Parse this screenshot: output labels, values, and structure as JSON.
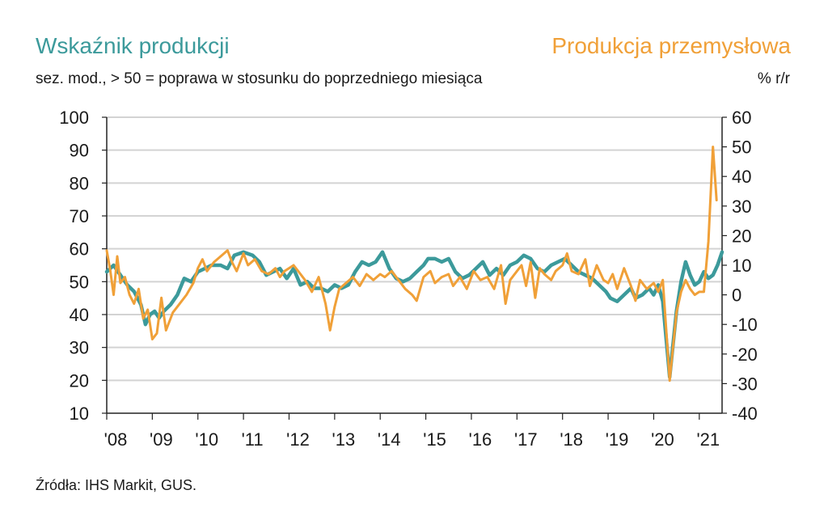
{
  "colors": {
    "left_series": "#3c9a9b",
    "right_series": "#f0a038",
    "grid": "#d3d3d3",
    "axis": "#222222"
  },
  "texts": {
    "title_left": "Wskaźnik produkcji",
    "title_right": "Produkcja przemysłowa",
    "subtitle_left": "sez. mod., > 50 = poprawa w stosunku do poprzedniego miesiąca",
    "subtitle_right": "% r/r",
    "source": "Źródła: IHS Markit, GUS."
  },
  "chart_data": {
    "type": "line",
    "title": "Wskaźnik produkcji / Produkcja przemysłowa",
    "left_axis": {
      "label": "sez. mod., > 50 = poprawa w stosunku do poprzedniego miesiąca",
      "ylim": [
        10,
        100
      ],
      "ticks": [
        "10",
        "20",
        "30",
        "40",
        "50",
        "60",
        "70",
        "80",
        "90",
        "100"
      ]
    },
    "right_axis": {
      "label": "% r/r",
      "ylim": [
        -40,
        60
      ],
      "ticks": [
        "-40",
        "-30",
        "-20",
        "-10",
        "0",
        "10",
        "20",
        "30",
        "40",
        "50",
        "60"
      ]
    },
    "x_range": [
      2008.0,
      2021.5
    ],
    "x_ticks": [
      {
        "label": "'08",
        "x": 2008.0
      },
      {
        "label": "'09",
        "x": 2009.0
      },
      {
        "label": "'10",
        "x": 2010.0
      },
      {
        "label": "'11",
        "x": 2011.0
      },
      {
        "label": "'12",
        "x": 2012.0
      },
      {
        "label": "'13",
        "x": 2013.0
      },
      {
        "label": "'14",
        "x": 2014.0
      },
      {
        "label": "'15",
        "x": 2015.0
      },
      {
        "label": "'16",
        "x": 2016.0
      },
      {
        "label": "'17",
        "x": 2017.0
      },
      {
        "label": "'18",
        "x": 2018.0
      },
      {
        "label": "'19",
        "x": 2019.0
      },
      {
        "label": "'20",
        "x": 2020.0
      },
      {
        "label": "'21",
        "x": 2021.0
      }
    ],
    "grid": true,
    "series": [
      {
        "name": "Wskaźnik produkcji",
        "axis": "left",
        "points": [
          [
            2008.0,
            53
          ],
          [
            2008.15,
            55
          ],
          [
            2008.3,
            52
          ],
          [
            2008.45,
            49
          ],
          [
            2008.6,
            47
          ],
          [
            2008.75,
            43
          ],
          [
            2008.85,
            37
          ],
          [
            2008.95,
            40
          ],
          [
            2009.05,
            41
          ],
          [
            2009.15,
            39
          ],
          [
            2009.25,
            41
          ],
          [
            2009.4,
            43
          ],
          [
            2009.55,
            46
          ],
          [
            2009.7,
            51
          ],
          [
            2009.85,
            50
          ],
          [
            2010.0,
            53
          ],
          [
            2010.15,
            54
          ],
          [
            2010.3,
            55
          ],
          [
            2010.5,
            55
          ],
          [
            2010.65,
            54
          ],
          [
            2010.8,
            58
          ],
          [
            2011.0,
            59
          ],
          [
            2011.2,
            58
          ],
          [
            2011.35,
            56
          ],
          [
            2011.5,
            52
          ],
          [
            2011.65,
            53
          ],
          [
            2011.8,
            54
          ],
          [
            2011.95,
            51
          ],
          [
            2012.1,
            54
          ],
          [
            2012.25,
            49
          ],
          [
            2012.4,
            50
          ],
          [
            2012.55,
            48
          ],
          [
            2012.7,
            48
          ],
          [
            2012.85,
            47
          ],
          [
            2013.0,
            49
          ],
          [
            2013.15,
            48
          ],
          [
            2013.3,
            49
          ],
          [
            2013.45,
            53
          ],
          [
            2013.6,
            56
          ],
          [
            2013.75,
            55
          ],
          [
            2013.9,
            56
          ],
          [
            2014.05,
            59
          ],
          [
            2014.2,
            54
          ],
          [
            2014.35,
            51
          ],
          [
            2014.5,
            50
          ],
          [
            2014.65,
            51
          ],
          [
            2014.8,
            53
          ],
          [
            2014.95,
            55
          ],
          [
            2015.05,
            57
          ],
          [
            2015.2,
            57
          ],
          [
            2015.35,
            56
          ],
          [
            2015.5,
            57
          ],
          [
            2015.65,
            53
          ],
          [
            2015.8,
            51
          ],
          [
            2015.95,
            52
          ],
          [
            2016.1,
            54
          ],
          [
            2016.25,
            56
          ],
          [
            2016.4,
            52
          ],
          [
            2016.55,
            54
          ],
          [
            2016.7,
            52
          ],
          [
            2016.85,
            55
          ],
          [
            2017.0,
            56
          ],
          [
            2017.15,
            58
          ],
          [
            2017.3,
            57
          ],
          [
            2017.45,
            54
          ],
          [
            2017.6,
            53
          ],
          [
            2017.75,
            55
          ],
          [
            2017.9,
            56
          ],
          [
            2018.05,
            57
          ],
          [
            2018.2,
            55
          ],
          [
            2018.35,
            53
          ],
          [
            2018.5,
            52
          ],
          [
            2018.65,
            51
          ],
          [
            2018.8,
            49
          ],
          [
            2018.95,
            47
          ],
          [
            2019.05,
            45
          ],
          [
            2019.2,
            44
          ],
          [
            2019.35,
            46
          ],
          [
            2019.5,
            48
          ],
          [
            2019.6,
            45
          ],
          [
            2019.75,
            46
          ],
          [
            2019.9,
            48
          ],
          [
            2020.0,
            46
          ],
          [
            2020.1,
            49
          ],
          [
            2020.2,
            44
          ],
          [
            2020.35,
            21
          ],
          [
            2020.5,
            41
          ],
          [
            2020.6,
            50
          ],
          [
            2020.7,
            56
          ],
          [
            2020.8,
            52
          ],
          [
            2020.9,
            49
          ],
          [
            2021.0,
            50
          ],
          [
            2021.1,
            53
          ],
          [
            2021.2,
            51
          ],
          [
            2021.3,
            52
          ],
          [
            2021.4,
            55
          ],
          [
            2021.5,
            59
          ]
        ]
      },
      {
        "name": "Produkcja przemysłowa",
        "axis": "right",
        "points": [
          [
            2008.0,
            15
          ],
          [
            2008.08,
            8
          ],
          [
            2008.15,
            0
          ],
          [
            2008.23,
            13
          ],
          [
            2008.3,
            4
          ],
          [
            2008.4,
            6
          ],
          [
            2008.5,
            0
          ],
          [
            2008.6,
            -3
          ],
          [
            2008.7,
            2
          ],
          [
            2008.8,
            -8
          ],
          [
            2008.9,
            -5
          ],
          [
            2009.0,
            -15
          ],
          [
            2009.1,
            -13
          ],
          [
            2009.2,
            -1
          ],
          [
            2009.3,
            -12
          ],
          [
            2009.45,
            -6
          ],
          [
            2009.6,
            -3
          ],
          [
            2009.75,
            0
          ],
          [
            2009.9,
            4
          ],
          [
            2010.0,
            9
          ],
          [
            2010.1,
            12
          ],
          [
            2010.2,
            8
          ],
          [
            2010.35,
            11
          ],
          [
            2010.5,
            13
          ],
          [
            2010.65,
            15
          ],
          [
            2010.75,
            11
          ],
          [
            2010.85,
            8
          ],
          [
            2011.0,
            14
          ],
          [
            2011.1,
            10
          ],
          [
            2011.25,
            12
          ],
          [
            2011.4,
            8
          ],
          [
            2011.55,
            7
          ],
          [
            2011.7,
            9
          ],
          [
            2011.8,
            6
          ],
          [
            2011.9,
            8
          ],
          [
            2012.0,
            9
          ],
          [
            2012.1,
            10
          ],
          [
            2012.2,
            8
          ],
          [
            2012.35,
            5
          ],
          [
            2012.5,
            1
          ],
          [
            2012.65,
            6
          ],
          [
            2012.8,
            -3
          ],
          [
            2012.9,
            -12
          ],
          [
            2013.0,
            -4
          ],
          [
            2013.1,
            2
          ],
          [
            2013.25,
            4
          ],
          [
            2013.4,
            6
          ],
          [
            2013.55,
            3
          ],
          [
            2013.7,
            7
          ],
          [
            2013.85,
            5
          ],
          [
            2014.0,
            7
          ],
          [
            2014.1,
            6
          ],
          [
            2014.25,
            8
          ],
          [
            2014.4,
            5
          ],
          [
            2014.55,
            2
          ],
          [
            2014.7,
            0
          ],
          [
            2014.8,
            -2
          ],
          [
            2014.95,
            6
          ],
          [
            2015.1,
            8
          ],
          [
            2015.2,
            4
          ],
          [
            2015.35,
            6
          ],
          [
            2015.5,
            7
          ],
          [
            2015.6,
            3
          ],
          [
            2015.75,
            6
          ],
          [
            2015.9,
            2
          ],
          [
            2016.05,
            8
          ],
          [
            2016.2,
            5
          ],
          [
            2016.35,
            6
          ],
          [
            2016.5,
            2
          ],
          [
            2016.65,
            10
          ],
          [
            2016.75,
            -3
          ],
          [
            2016.85,
            5
          ],
          [
            2017.0,
            8
          ],
          [
            2017.1,
            10
          ],
          [
            2017.2,
            3
          ],
          [
            2017.3,
            11
          ],
          [
            2017.4,
            -1
          ],
          [
            2017.5,
            9
          ],
          [
            2017.6,
            7
          ],
          [
            2017.75,
            5
          ],
          [
            2017.85,
            8
          ],
          [
            2018.0,
            10
          ],
          [
            2018.1,
            14
          ],
          [
            2018.2,
            8
          ],
          [
            2018.35,
            7
          ],
          [
            2018.5,
            12
          ],
          [
            2018.6,
            3
          ],
          [
            2018.75,
            10
          ],
          [
            2018.9,
            5
          ],
          [
            2019.0,
            4
          ],
          [
            2019.1,
            7
          ],
          [
            2019.2,
            2
          ],
          [
            2019.35,
            9
          ],
          [
            2019.5,
            3
          ],
          [
            2019.6,
            -2
          ],
          [
            2019.7,
            5
          ],
          [
            2019.85,
            2
          ],
          [
            2020.0,
            4
          ],
          [
            2020.1,
            1
          ],
          [
            2020.2,
            5
          ],
          [
            2020.35,
            -29
          ],
          [
            2020.5,
            -6
          ],
          [
            2020.6,
            1
          ],
          [
            2020.7,
            5
          ],
          [
            2020.8,
            2
          ],
          [
            2020.9,
            0
          ],
          [
            2021.0,
            1
          ],
          [
            2021.1,
            1
          ],
          [
            2021.2,
            18
          ],
          [
            2021.3,
            50
          ],
          [
            2021.38,
            32
          ]
        ]
      }
    ]
  }
}
